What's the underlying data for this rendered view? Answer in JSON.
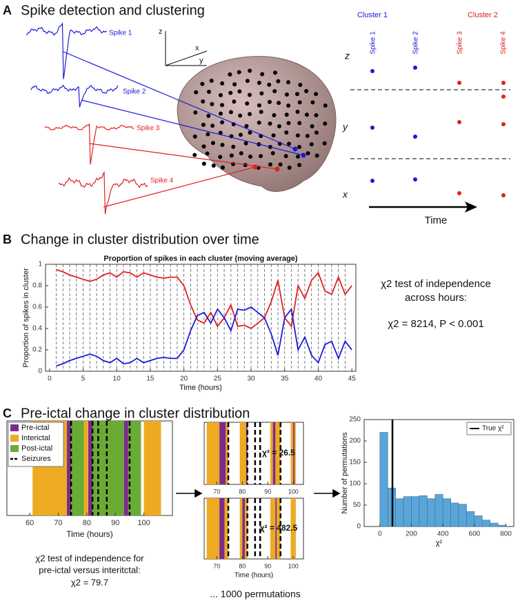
{
  "panel_a": {
    "letter": "A",
    "title": "Spike detection and clustering",
    "spikes": [
      "Spike 1",
      "Spike 2",
      "Spike 3",
      "Spike 4"
    ],
    "axes": {
      "z": "z",
      "x": "x",
      "y": "y"
    },
    "clusters": [
      "Cluster 1",
      "Cluster 2"
    ],
    "columns": [
      "Spike 1",
      "Spike 2",
      "Spike 3",
      "Spike 4"
    ],
    "rows": [
      "z",
      "y",
      "x"
    ],
    "time_label": "Time"
  },
  "panel_b": {
    "letter": "B",
    "title": "Change in cluster distribution over time",
    "test_text": [
      "χ2 test of independence",
      "across hours:"
    ],
    "result": "χ2 = 8214, P < 0.001"
  },
  "panel_c": {
    "letter": "C",
    "title": "Pre-ictal change in cluster distribution",
    "test_text": [
      "χ2 test of independence for",
      "pre-ictal versus interitctal:"
    ],
    "result": "χ2 = 79.7",
    "permutations": "... 1000 permutations"
  },
  "chart_data": [
    {
      "type": "line",
      "title": "Proportion of spikes in each cluster (moving average)",
      "xlabel": "Time (hours)",
      "ylabel": "Proportion of spikes in cluster",
      "xlim": [
        -0.6,
        45.6
      ],
      "ylim": [
        0,
        1
      ],
      "xticks": [
        0,
        5,
        10,
        15,
        20,
        25,
        30,
        35,
        40,
        45
      ],
      "yticks": [
        0,
        0.2,
        0.4,
        0.6,
        0.8,
        1
      ],
      "hour_lines": true,
      "x": [
        1,
        2,
        3,
        4,
        5,
        6,
        7,
        8,
        9,
        10,
        11,
        12,
        13,
        14,
        15,
        16,
        17,
        18,
        19,
        20,
        21,
        22,
        23,
        24,
        25,
        26,
        27,
        28,
        29,
        30,
        31,
        32,
        33,
        34,
        35,
        36,
        37,
        38,
        39,
        40,
        41,
        42,
        43,
        44,
        45
      ],
      "series": [
        {
          "color": "#e0201e",
          "values": [
            0.95,
            0.93,
            0.9,
            0.88,
            0.86,
            0.84,
            0.86,
            0.9,
            0.92,
            0.88,
            0.93,
            0.92,
            0.88,
            0.92,
            0.9,
            0.88,
            0.87,
            0.88,
            0.88,
            0.8,
            0.62,
            0.48,
            0.45,
            0.55,
            0.42,
            0.5,
            0.62,
            0.42,
            0.43,
            0.4,
            0.45,
            0.5,
            0.65,
            0.85,
            0.5,
            0.42,
            0.8,
            0.68,
            0.85,
            0.92,
            0.75,
            0.72,
            0.88,
            0.72,
            0.8
          ]
        },
        {
          "color": "#1a1adc",
          "values": [
            0.05,
            0.07,
            0.1,
            0.12,
            0.14,
            0.16,
            0.14,
            0.1,
            0.08,
            0.12,
            0.07,
            0.08,
            0.12,
            0.08,
            0.1,
            0.12,
            0.13,
            0.12,
            0.12,
            0.2,
            0.38,
            0.52,
            0.55,
            0.45,
            0.58,
            0.5,
            0.38,
            0.58,
            0.57,
            0.6,
            0.55,
            0.5,
            0.35,
            0.15,
            0.5,
            0.58,
            0.2,
            0.32,
            0.15,
            0.08,
            0.25,
            0.28,
            0.12,
            0.28,
            0.2
          ]
        }
      ]
    },
    {
      "type": "timeline",
      "xlim": [
        52,
        110
      ],
      "xticks": [
        60,
        70,
        80,
        90,
        100
      ],
      "xlabel": "Time (hours)",
      "legend": "upper left",
      "series": [
        {
          "name": "Pre-ictal",
          "color": "#7b2d8e",
          "intervals": [
            [
              73,
              74.5
            ],
            [
              80.5,
              82
            ],
            [
              93,
              94.5
            ]
          ]
        },
        {
          "name": "Interictal",
          "color": "#eeaa22",
          "intervals": [
            [
              61,
              73
            ],
            [
              79,
              80.5
            ],
            [
              100,
              106
            ]
          ]
        },
        {
          "name": "Post-ictal",
          "color": "#6aab35",
          "intervals": [
            [
              74.5,
              79
            ],
            [
              82,
              93
            ],
            [
              94.5,
              99
            ]
          ]
        },
        {
          "name": "Seizures",
          "color": "#000000",
          "style": "dashed",
          "times": [
            74.5,
            82,
            84,
            87,
            95
          ]
        }
      ]
    },
    {
      "type": "timeline",
      "xlim": [
        65,
        104
      ],
      "xticks": [
        70,
        80,
        90,
        100
      ],
      "annotation": "χ² = 26.5",
      "series": [
        {
          "color": "#eeaa22",
          "intervals": [
            [
              66,
              71
            ],
            [
              73.5,
              74.5
            ],
            [
              79,
              81.5
            ],
            [
              91,
              92
            ],
            [
              93,
              95
            ],
            [
              99,
              100
            ],
            [
              100.5,
              101
            ]
          ]
        },
        {
          "color": "#7b2d8e",
          "intervals": [
            [
              71,
              73.5
            ],
            [
              81.5,
              82
            ],
            [
              92,
              93
            ],
            [
              100,
              100.5
            ]
          ]
        },
        {
          "color": "#000000",
          "style": "dashed",
          "times": [
            74.5,
            82,
            85,
            87,
            95
          ]
        }
      ]
    },
    {
      "type": "timeline",
      "xlim": [
        65,
        104
      ],
      "xticks": [
        70,
        80,
        90,
        100
      ],
      "xlabel": "Time (hours)",
      "annotation": "χ² = 482.5",
      "series": [
        {
          "color": "#eeaa22",
          "intervals": [
            [
              66,
              71
            ],
            [
              73,
              74.5
            ],
            [
              79,
              80
            ],
            [
              81,
              82
            ],
            [
              91,
              93
            ],
            [
              93.5,
              95
            ],
            [
              99,
              101
            ]
          ]
        },
        {
          "color": "#7b2d8e",
          "intervals": [
            [
              71,
              73
            ],
            [
              80,
              81
            ],
            [
              93,
              93.5
            ]
          ]
        },
        {
          "color": "#000000",
          "style": "dashed",
          "times": [
            74.5,
            82,
            85,
            87,
            95
          ]
        }
      ]
    },
    {
      "type": "histogram",
      "xlabel": "χ²",
      "ylabel": "Number of permutations",
      "color": "#5aa5d8",
      "xlim": [
        -100,
        850
      ],
      "ylim": [
        0,
        250
      ],
      "xticks": [
        0,
        200,
        400,
        600,
        800
      ],
      "yticks": [
        0,
        50,
        100,
        150,
        200,
        250
      ],
      "bins": [
        0,
        50,
        100,
        150,
        200,
        250,
        300,
        350,
        400,
        450,
        500,
        550,
        600,
        650,
        700,
        750,
        800
      ],
      "counts": [
        220,
        90,
        65,
        70,
        70,
        72,
        65,
        75,
        65,
        55,
        52,
        35,
        25,
        15,
        8,
        3
      ],
      "marker": {
        "name": "True χ²",
        "value": 79.7,
        "color": "#000000"
      },
      "legend": "upper right"
    }
  ]
}
